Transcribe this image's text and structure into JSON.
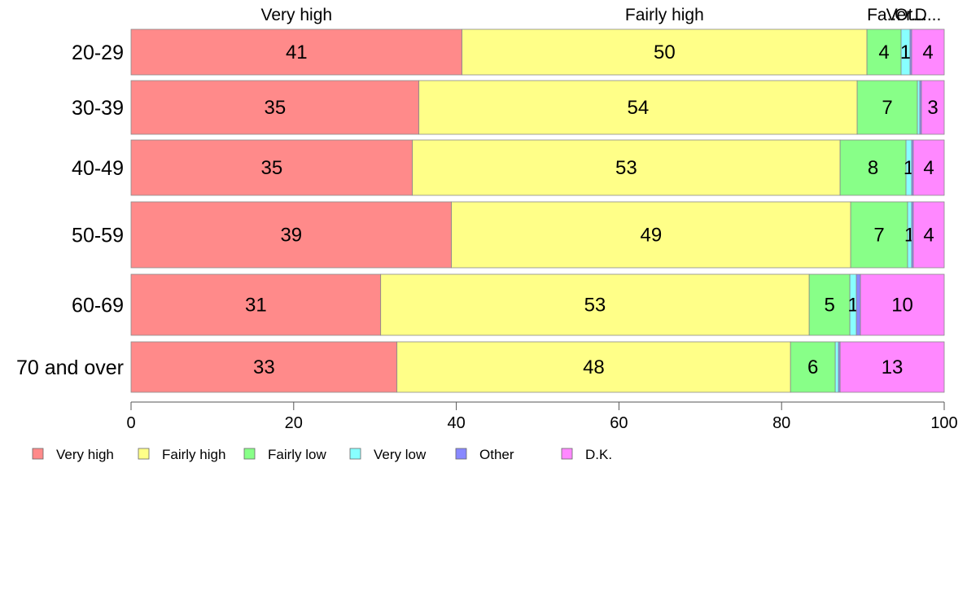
{
  "chart_data": {
    "type": "bar",
    "orientation": "horizontal",
    "stacked": true,
    "categories": [
      "20-29",
      "30-39",
      "40-49",
      "50-59",
      "60-69",
      "70 and over"
    ],
    "series": [
      {
        "name": "Very high",
        "color": "#FF8A8A",
        "values": [
          40.7,
          35.4,
          34.6,
          39.4,
          30.7,
          32.7
        ]
      },
      {
        "name": "Fairly high",
        "color": "#FFFF88",
        "values": [
          49.8,
          53.9,
          52.6,
          49.1,
          52.7,
          48.4
        ]
      },
      {
        "name": "Fairly low",
        "color": "#88FF88",
        "values": [
          4.2,
          7.4,
          8.1,
          7.0,
          5.0,
          5.5
        ]
      },
      {
        "name": "Very low",
        "color": "#88FFFF",
        "values": [
          1.1,
          0.3,
          0.7,
          0.5,
          0.8,
          0.4
        ]
      },
      {
        "name": "Other",
        "color": "#8888FF",
        "values": [
          0.2,
          0.2,
          0.2,
          0.2,
          0.5,
          0.2
        ]
      },
      {
        "name": "D.K.",
        "color": "#FF88FF",
        "values": [
          4.0,
          2.8,
          3.8,
          3.8,
          10.3,
          12.8
        ]
      }
    ],
    "data_labels": [
      [
        "41",
        "50",
        "4",
        "1",
        "",
        "4"
      ],
      [
        "35",
        "54",
        "7",
        "",
        "",
        "3"
      ],
      [
        "35",
        "53",
        "8",
        "1",
        "",
        "4"
      ],
      [
        "39",
        "49",
        "7",
        "1",
        "",
        "4"
      ],
      [
        "31",
        "53",
        "5",
        "1",
        "",
        "10"
      ],
      [
        "33",
        "48",
        "6",
        "",
        "",
        "13"
      ]
    ],
    "top_labels": [
      "Very high",
      "Fairly high",
      "Fa...",
      "Ver...",
      "Ot...",
      "D..."
    ],
    "xlim": [
      0,
      100
    ],
    "xticks": [
      "0",
      "20",
      "40",
      "60",
      "80",
      "100"
    ],
    "grid": false,
    "legend_position": "bottom-left"
  }
}
